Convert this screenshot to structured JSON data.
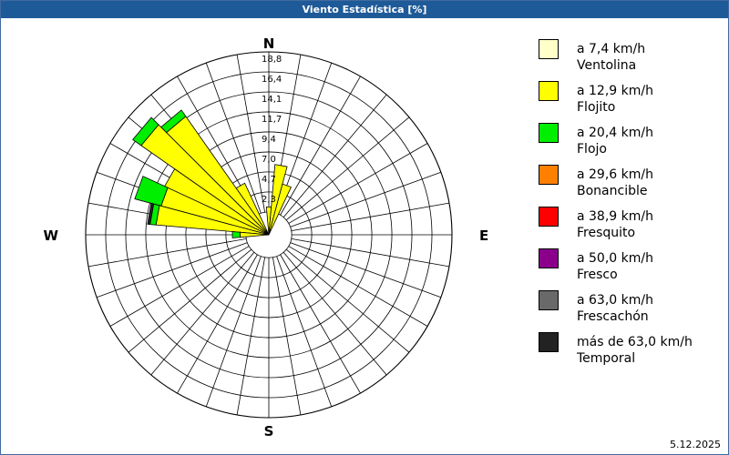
{
  "window": {
    "title": "Viento Estadística [%]"
  },
  "footer": {
    "date": "5.12.2025"
  },
  "legend": [
    {
      "range": "a 7,4 km/h",
      "name": "Ventolina",
      "color": "#ffffc8"
    },
    {
      "range": "a 12,9 km/h",
      "name": "Flojito",
      "color": "#ffff00"
    },
    {
      "range": "a 20,4 km/h",
      "name": "Flojo",
      "color": "#00ee00"
    },
    {
      "range": "a 29,6 km/h",
      "name": "Bonancible",
      "color": "#ff8000"
    },
    {
      "range": "a 38,9 km/h",
      "name": "Fresquito",
      "color": "#ff0000"
    },
    {
      "range": "a 50,0 km/h",
      "name": "Fresco",
      "color": "#8b008b"
    },
    {
      "range": "a 63,0 km/h",
      "name": "Frescachón",
      "color": "#696969"
    },
    {
      "range": "más de 63,0 km/h",
      "name": "Temporal",
      "color": "#222222"
    }
  ],
  "chart_data": {
    "type": "rose",
    "title": "Viento Estadística [%]",
    "unit": "%",
    "directions_labels": [
      "N",
      "E",
      "S",
      "W"
    ],
    "radial_ticks": [
      "2,3",
      "4,7",
      "7,0",
      "9,4",
      "11,7",
      "14,1",
      "16,4",
      "18,8"
    ],
    "rmax": 18.8,
    "inner_ring_fraction": 0.125,
    "sectors": 36,
    "series_names": [
      "Ventolina",
      "Flojito",
      "Flojo",
      "Bonancible",
      "Fresquito",
      "Fresco",
      "Frescachón",
      "Temporal"
    ],
    "series_colors": [
      "#ffffc8",
      "#ffff00",
      "#00ee00",
      "#ff8000",
      "#ff0000",
      "#8b008b",
      "#696969",
      "#222222"
    ],
    "bars": [
      {
        "direction_deg": 0,
        "values": [
          0,
          0.6,
          0,
          0,
          0,
          0,
          0,
          0
        ]
      },
      {
        "direction_deg": 10,
        "values": [
          0,
          5.6,
          0,
          0,
          0,
          0,
          0,
          0
        ]
      },
      {
        "direction_deg": 20,
        "values": [
          0,
          3.5,
          0,
          0,
          0,
          0,
          0,
          0
        ]
      },
      {
        "direction_deg": 330,
        "values": [
          0,
          4.0,
          0,
          0,
          0,
          0,
          0,
          0
        ]
      },
      {
        "direction_deg": 320,
        "values": [
          0,
          14.3,
          0.9,
          0,
          0,
          0,
          0,
          0
        ]
      },
      {
        "direction_deg": 310,
        "values": [
          0,
          15.6,
          1.2,
          0,
          0,
          0,
          0,
          0
        ]
      },
      {
        "direction_deg": 300,
        "values": [
          0,
          10.8,
          0,
          0,
          0,
          0,
          0,
          0
        ]
      },
      {
        "direction_deg": 290,
        "values": [
          0,
          10.4,
          3.2,
          0,
          0,
          0,
          0,
          0
        ]
      },
      {
        "direction_deg": 280,
        "values": [
          0,
          10.6,
          0.7,
          0,
          0,
          0,
          0,
          0.3
        ]
      },
      {
        "direction_deg": 270,
        "values": [
          0,
          0.7,
          0.9,
          0,
          0,
          0,
          0,
          0
        ]
      }
    ]
  }
}
